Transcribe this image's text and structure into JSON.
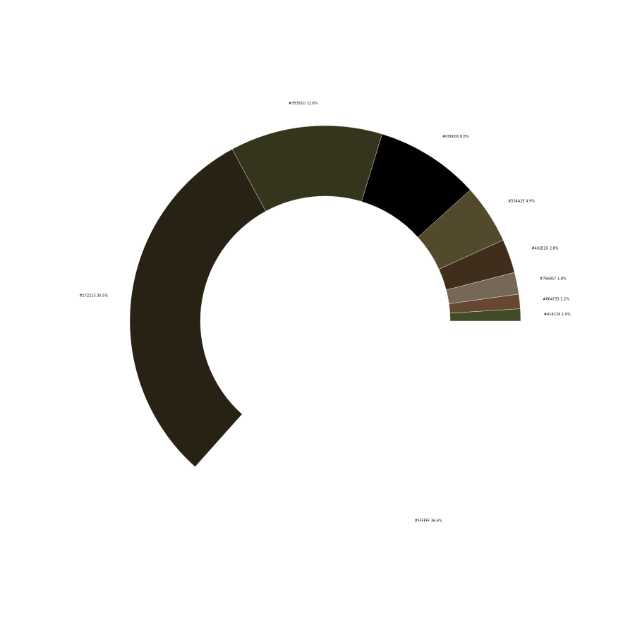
{
  "chart_data": {
    "type": "pie",
    "title": "",
    "donut": true,
    "start_angle_deg": 0,
    "direction": "clockwise",
    "legend": "none",
    "categories": [
      "#FFFFFF",
      "#272213",
      "#35351D",
      "#000000",
      "#534A2E",
      "#402E1D",
      "#756857",
      "#664733",
      "#414C26"
    ],
    "values": [
      36.6,
      30.5,
      12.6,
      8.6,
      4.9,
      2.8,
      1.8,
      1.2,
      1.0
    ],
    "labels": [
      "#FFFFFF 36.6%",
      "#272213 30.5%",
      "#35351D 12.6%",
      "#000000 8.6%",
      "#534A2E 4.9%",
      "#402E1D 2.8%",
      "#756857 1.8%",
      "#664733 1.2%",
      "#414C26 1.0%"
    ],
    "colors": [
      "#FFFFFF",
      "#272213",
      "#35351D",
      "#000000",
      "#534A2E",
      "#402E1D",
      "#756857",
      "#664733",
      "#414C26"
    ]
  }
}
